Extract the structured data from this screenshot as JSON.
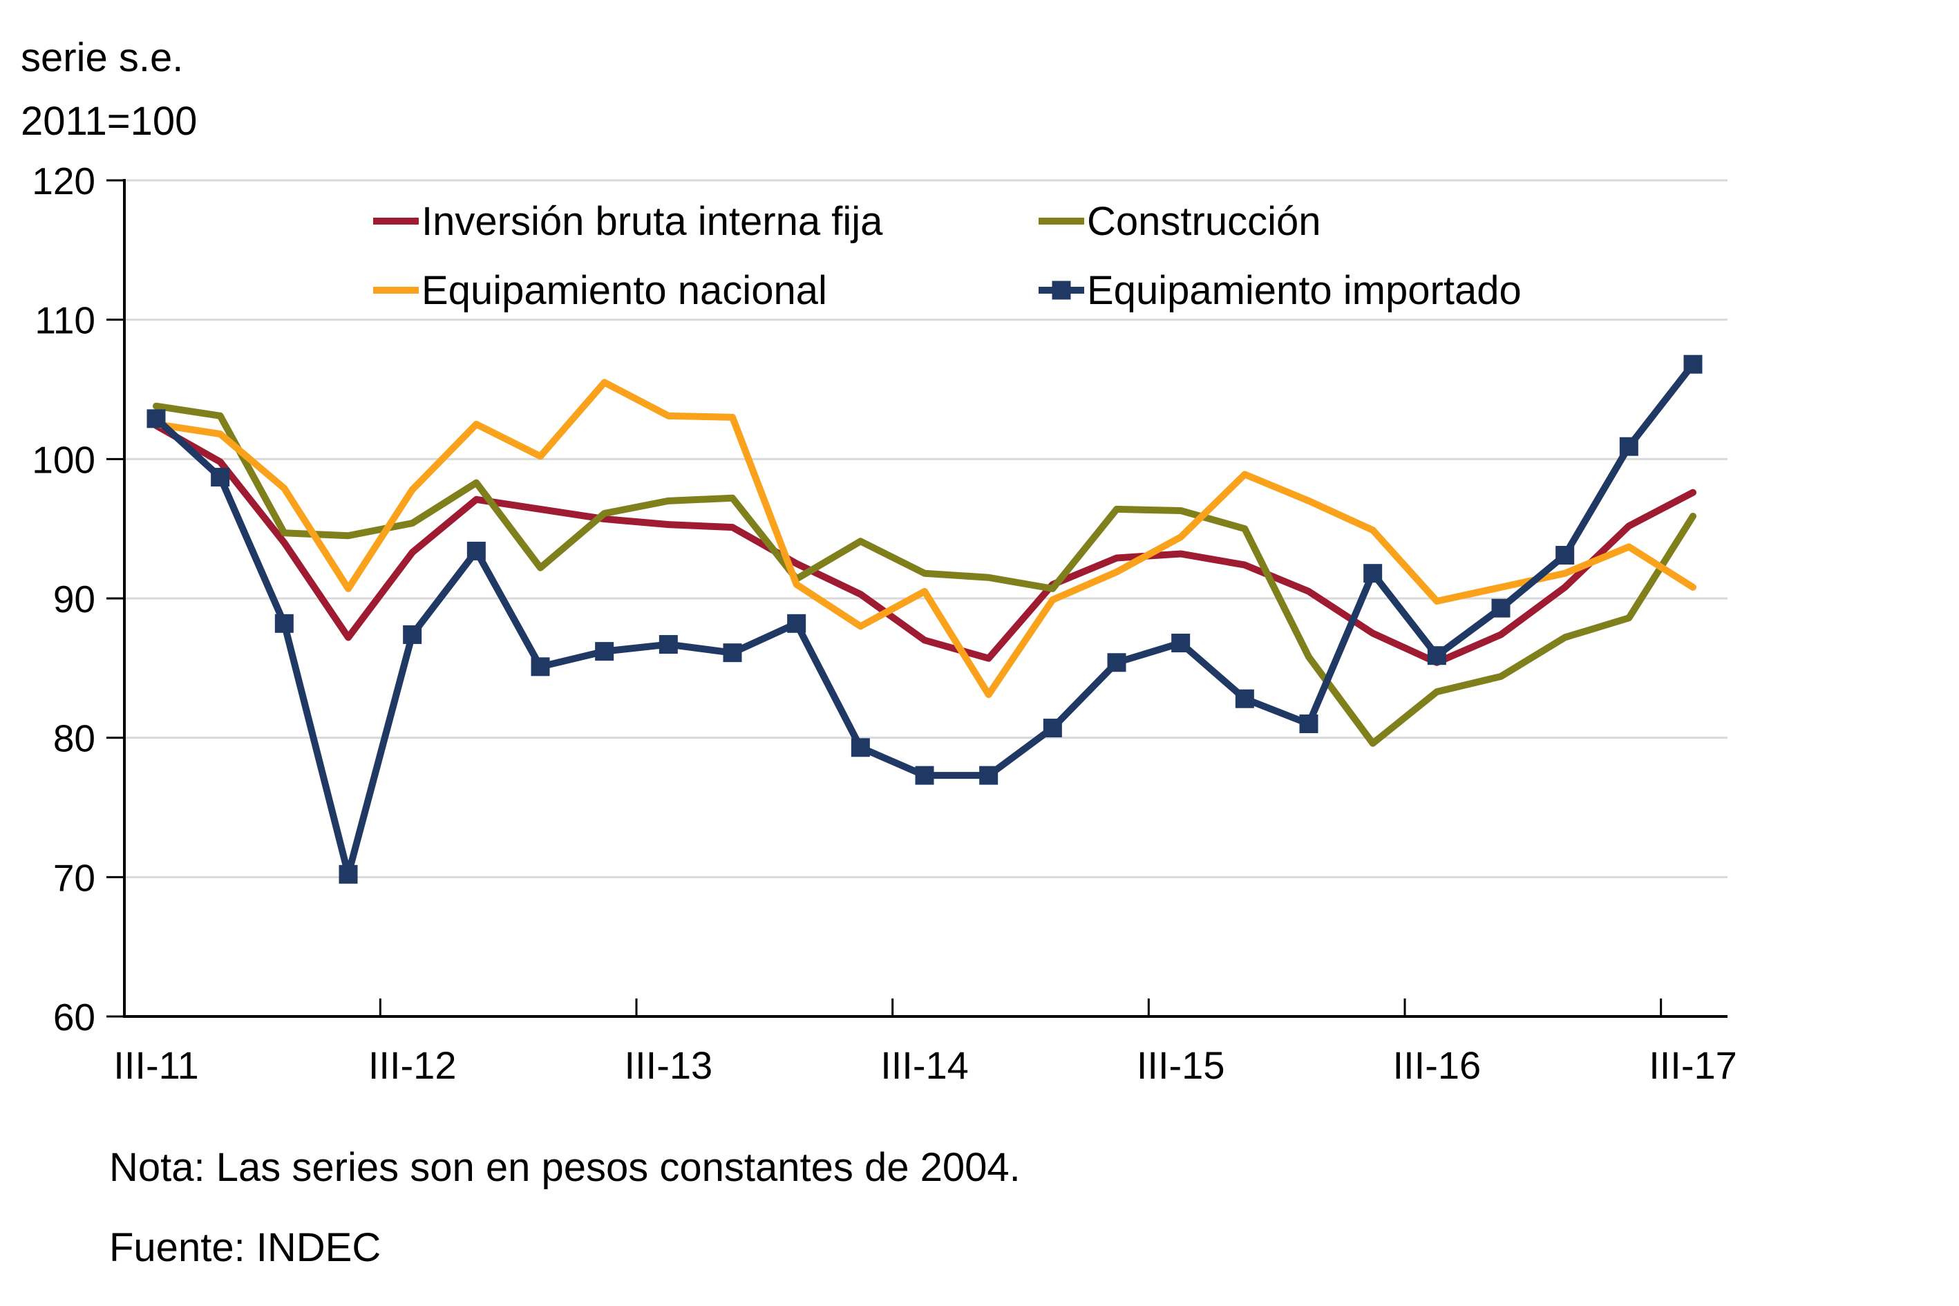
{
  "title": {
    "line1": "serie s.e.",
    "line2": "2011=100"
  },
  "notes": {
    "line1": "Nota: Las series son en pesos constantes de 2004.",
    "line2": "Fuente: INDEC"
  },
  "colors": {
    "background": "#FFFFFF",
    "gridline": "#D9D9D9",
    "axis": "#000000",
    "text": "#000000"
  },
  "chart_data": {
    "type": "line",
    "title": "serie s.e. 2011=100",
    "xlabel": "",
    "ylabel": "",
    "ylim": [
      60,
      120
    ],
    "yticks": [
      60,
      70,
      80,
      90,
      100,
      110,
      120
    ],
    "grid": "horizontal",
    "legend_position": "top-inside-two-columns",
    "categories": [
      "III-11",
      "IV-11",
      "I-12",
      "II-12",
      "III-12",
      "IV-12",
      "I-13",
      "II-13",
      "III-13",
      "IV-13",
      "I-14",
      "II-14",
      "III-14",
      "IV-14",
      "I-15",
      "II-15",
      "III-15",
      "IV-15",
      "I-16",
      "II-16",
      "III-16",
      "IV-16",
      "I-17",
      "II-17",
      "III-17"
    ],
    "x_ticks": [
      {
        "index": 0,
        "label": "III-11"
      },
      {
        "index": 4,
        "label": "III-12"
      },
      {
        "index": 8,
        "label": "III-13"
      },
      {
        "index": 12,
        "label": "III-14"
      },
      {
        "index": 16,
        "label": "III-15"
      },
      {
        "index": 20,
        "label": "III-16"
      },
      {
        "index": 24,
        "label": "III-17"
      }
    ],
    "series": [
      {
        "name": "Inversión bruta interna fija",
        "color": "#9E1B32",
        "marker": "none",
        "values": [
          102.4,
          99.8,
          94.0,
          87.2,
          93.3,
          97.1,
          96.4,
          95.7,
          95.3,
          95.1,
          92.5,
          90.3,
          87.0,
          85.7,
          91.0,
          92.9,
          93.2,
          92.4,
          90.5,
          87.5,
          85.4,
          87.4,
          90.8,
          95.2,
          97.6
        ]
      },
      {
        "name": "Construcción",
        "color": "#7F7F1C",
        "marker": "none",
        "values": [
          103.8,
          103.1,
          94.7,
          94.5,
          95.4,
          98.3,
          92.2,
          96.1,
          97.0,
          97.2,
          91.4,
          94.1,
          91.8,
          91.5,
          90.7,
          96.4,
          96.3,
          95.0,
          85.8,
          79.6,
          83.3,
          84.4,
          87.2,
          88.6,
          95.9
        ]
      },
      {
        "name": "Equipamiento nacional",
        "color": "#FAA21B",
        "marker": "none",
        "values": [
          102.5,
          101.8,
          97.9,
          90.7,
          97.8,
          102.5,
          100.2,
          105.5,
          103.1,
          103.0,
          91.0,
          88.0,
          90.5,
          83.1,
          89.9,
          91.9,
          94.4,
          98.9,
          97.0,
          94.9,
          89.8,
          90.8,
          91.8,
          93.7,
          90.8
        ]
      },
      {
        "name": "Equipamiento importado",
        "color": "#1F3864",
        "marker": "square",
        "values": [
          102.9,
          98.7,
          88.2,
          70.2,
          87.4,
          93.4,
          85.1,
          86.2,
          86.7,
          86.1,
          88.2,
          79.3,
          77.3,
          77.3,
          80.7,
          85.4,
          86.8,
          82.8,
          81.0,
          91.8,
          85.9,
          89.3,
          93.1,
          100.9,
          106.8
        ]
      }
    ]
  }
}
